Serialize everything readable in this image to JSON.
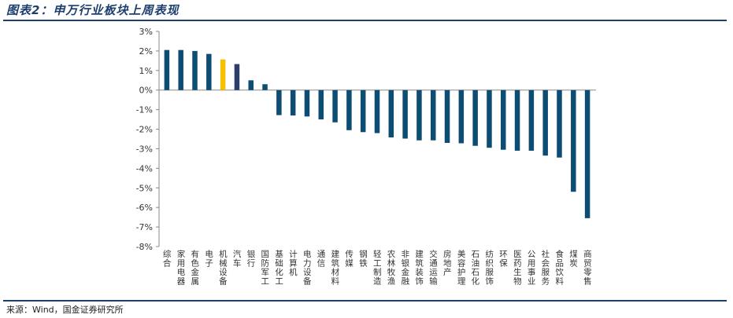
{
  "header": {
    "title": "图表2：申万行业板块上周表现"
  },
  "footer": {
    "source": "来源：Wind，国金证券研究所"
  },
  "colors": {
    "default_bar": "#0e4d73",
    "highlight_bar": "#f5c000",
    "dark_bar": "#2c3f6b",
    "axis": "#888888",
    "title_rule": "#1d3f6e"
  },
  "chart_data": {
    "type": "bar",
    "title": "",
    "xlabel": "",
    "ylabel": "",
    "ylim": [
      -8,
      3
    ],
    "y_ticks": [
      3,
      2,
      1,
      0,
      -1,
      -2,
      -3,
      -4,
      -5,
      -6,
      -7,
      -8
    ],
    "y_tick_labels": [
      "3%",
      "2%",
      "1%",
      "0%",
      "-1%",
      "-2%",
      "-3%",
      "-4%",
      "-5%",
      "-6%",
      "-7%",
      "-8%"
    ],
    "grid": false,
    "legend": "none",
    "categories": [
      "综合",
      "家用电器",
      "有色金属",
      "电子",
      "机械设备",
      "汽车",
      "银行",
      "国防军工",
      "基础化工",
      "计算机",
      "电力设备",
      "通信",
      "建筑材料",
      "传媒",
      "钢铁",
      "轻工制造",
      "农林牧渔",
      "非银金融",
      "建筑装饰",
      "交通运输",
      "房地产",
      "美容护理",
      "石油石化",
      "纺织服饰",
      "环保",
      "医药生物",
      "公用事业",
      "社会服务",
      "食品饮料",
      "煤炭",
      "商贸零售"
    ],
    "values": [
      2.05,
      2.05,
      2.0,
      1.85,
      1.57,
      1.33,
      0.5,
      0.3,
      -1.28,
      -1.3,
      -1.35,
      -1.5,
      -1.65,
      -2.05,
      -2.15,
      -2.2,
      -2.42,
      -2.48,
      -2.57,
      -2.57,
      -2.7,
      -2.72,
      -2.85,
      -2.95,
      -3.05,
      -3.1,
      -3.1,
      -3.35,
      -3.45,
      -5.2,
      -6.55
    ],
    "bar_colors": [
      "#0e4d73",
      "#0e4d73",
      "#0e4d73",
      "#0e4d73",
      "#f5c000",
      "#2c3f6b",
      "#0e4d73",
      "#0e4d73",
      "#0e4d73",
      "#0e4d73",
      "#0e4d73",
      "#0e4d73",
      "#0e4d73",
      "#0e4d73",
      "#0e4d73",
      "#0e4d73",
      "#0e4d73",
      "#0e4d73",
      "#0e4d73",
      "#0e4d73",
      "#0e4d73",
      "#0e4d73",
      "#0e4d73",
      "#0e4d73",
      "#0e4d73",
      "#0e4d73",
      "#0e4d73",
      "#0e4d73",
      "#0e4d73",
      "#0e4d73",
      "#0e4d73"
    ]
  }
}
